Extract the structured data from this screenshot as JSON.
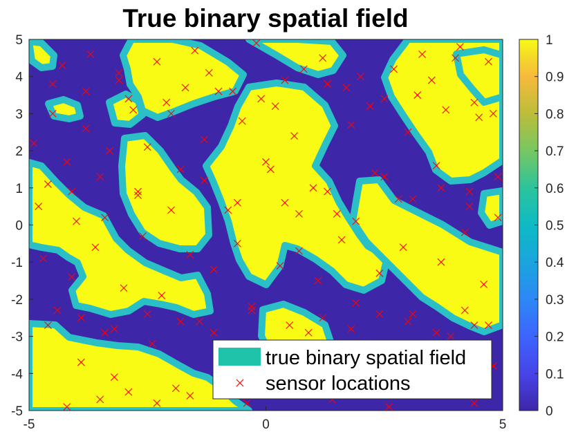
{
  "chart_data": {
    "type": "heatmap",
    "title": "True binary spatial field",
    "xlim": [
      -5,
      5
    ],
    "ylim": [
      -5,
      5
    ],
    "x_ticks": [
      -5,
      0,
      5
    ],
    "x_tick_labels": [
      "-5",
      "0",
      "5"
    ],
    "y_ticks": [
      5,
      4,
      3,
      2,
      1,
      0,
      -1,
      -2,
      -3,
      -4,
      -5
    ],
    "y_tick_labels": [
      "5",
      "4",
      "3",
      "2",
      "1",
      "0",
      "-1",
      "-2",
      "-3",
      "-4",
      "-5"
    ],
    "colorbar": {
      "range": [
        0,
        1
      ],
      "ticks": [
        1,
        0.9,
        0.8,
        0.7,
        0.6,
        0.5,
        0.4,
        0.3,
        0.2,
        0.1,
        0
      ],
      "tick_labels": [
        "1",
        "0.9",
        "0.8",
        "0.7",
        "0.6",
        "0.5",
        "0.4",
        "0.3",
        "0.2",
        "0.1",
        "0"
      ],
      "colormap": "parula"
    },
    "field": {
      "values": [
        0,
        1
      ],
      "low_color": "#3e26a8",
      "high_color": "#f9fb15",
      "edge_color": "#1fc3aa"
    },
    "legend": {
      "location": "bottom-right",
      "entries": [
        {
          "label": "true binary spatial field",
          "marker": "patch",
          "color": "#1fc3aa"
        },
        {
          "label": "sensor locations",
          "marker": "x",
          "color": "#ff0000"
        }
      ]
    },
    "grid": false,
    "sensors": {
      "name": "sensor locations",
      "marker": "x",
      "color": "#ff0000",
      "x": [
        -4.9,
        -4.6,
        -4.5,
        -4.3,
        -4.2,
        -4.0,
        -3.8,
        -3.7,
        -3.5,
        -3.3,
        -3.1,
        -2.9,
        -2.7,
        -2.5,
        -2.3,
        -2.0,
        -1.8,
        -1.5,
        -1.3,
        -1.0,
        -0.8,
        -0.5,
        -0.2,
        0.0,
        0.2,
        0.4,
        0.6,
        0.8,
        1.0,
        1.3,
        1.5,
        1.8,
        2.0,
        2.3,
        2.5,
        2.8,
        3.0,
        3.3,
        3.6,
        3.8,
        4.1,
        4.3,
        4.5,
        4.7,
        4.9,
        -4.7,
        -4.4,
        -4.1,
        -3.9,
        -3.6,
        -3.4,
        -3.2,
        -3.0,
        -2.6,
        -2.4,
        -2.2,
        -1.9,
        -1.6,
        -1.4,
        -1.1,
        -0.9,
        -0.6,
        -0.3,
        0.1,
        0.3,
        0.5,
        0.7,
        0.9,
        1.1,
        1.4,
        1.6,
        1.9,
        2.1,
        2.4,
        2.6,
        2.9,
        3.1,
        3.4,
        3.7,
        3.9,
        4.2,
        4.4,
        4.6,
        4.8,
        -4.5,
        -3.8,
        -3.1,
        -2.8,
        -2.1,
        -1.7,
        -1.2,
        -0.7,
        -0.1,
        0.4,
        1.2,
        1.7,
        2.2,
        2.7,
        3.2,
        3.5,
        4.0,
        4.4,
        4.8,
        -4.2,
        -3.5,
        -2.9,
        -2.3,
        -1.6,
        -1.0,
        -0.4,
        0.2,
        0.8,
        1.4,
        2.0,
        2.6,
        3.2,
        3.8,
        4.4,
        -4.8,
        -4.1,
        -3.4,
        -2.7,
        -2.0,
        -1.3,
        -0.6,
        0.1,
        0.7,
        1.3,
        1.9,
        2.5,
        3.1,
        3.7,
        4.3,
        4.9,
        -4.6,
        -3.9,
        -3.2,
        -2.5,
        -1.8,
        -1.1,
        -0.3,
        0.5,
        1.2,
        1.8,
        2.4,
        3.0,
        3.6,
        4.2,
        4.7
      ],
      "y": [
        2.2,
        1.1,
        3.0,
        4.3,
        1.7,
        0.1,
        2.6,
        4.6,
        1.3,
        2.0,
        4.1,
        3.4,
        0.9,
        2.1,
        4.4,
        3.0,
        1.5,
        4.7,
        2.3,
        3.6,
        0.4,
        2.8,
        4.9,
        1.7,
        3.2,
        0.6,
        2.4,
        4.2,
        1.0,
        3.8,
        0.3,
        2.7,
        4.0,
        1.4,
        3.4,
        0.7,
        2.5,
        4.6,
        1.6,
        3.1,
        4.8,
        0.9,
        2.9,
        4.4,
        1.3,
        -0.9,
        -2.3,
        -1.4,
        -3.7,
        -0.6,
        -2.9,
        -4.1,
        -1.7,
        -0.3,
        -3.2,
        -1.9,
        -4.4,
        -0.8,
        -2.6,
        -1.2,
        -3.9,
        -0.5,
        -2.2,
        -3.5,
        -1.1,
        -4.6,
        -0.7,
        -2.9,
        -1.5,
        -3.3,
        -0.4,
        -2.1,
        -4.0,
        -1.3,
        -3.6,
        -0.6,
        -2.4,
        -4.3,
        -1.0,
        -3.0,
        -0.2,
        -2.7,
        -1.6,
        -3.8,
        3.8,
        3.6,
        3.9,
        3.1,
        3.3,
        3.7,
        4.1,
        3.6,
        3.4,
        3.9,
        4.5,
        3.7,
        3.2,
        4.2,
        3.5,
        3.9,
        4.5,
        3.3,
        3.0,
        -4.9,
        -4.7,
        -4.5,
        -4.8,
        -4.6,
        -4.3,
        -4.8,
        -4.5,
        -4.2,
        -4.7,
        -4.4,
        -4.9,
        -4.6,
        -4.3,
        -4.8,
        0.5,
        0.9,
        0.2,
        0.8,
        0.4,
        1.2,
        0.6,
        1.5,
        0.3,
        0.9,
        0.1,
        1.3,
        0.7,
        1.0,
        0.5,
        0.2,
        -2.7,
        -2.5,
        -2.8,
        -2.4,
        -2.6,
        -2.9,
        -2.3,
        -2.7,
        -2.5,
        -2.8,
        -2.4,
        -2.6,
        -2.9,
        -2.3,
        -2.7
      ]
    }
  }
}
